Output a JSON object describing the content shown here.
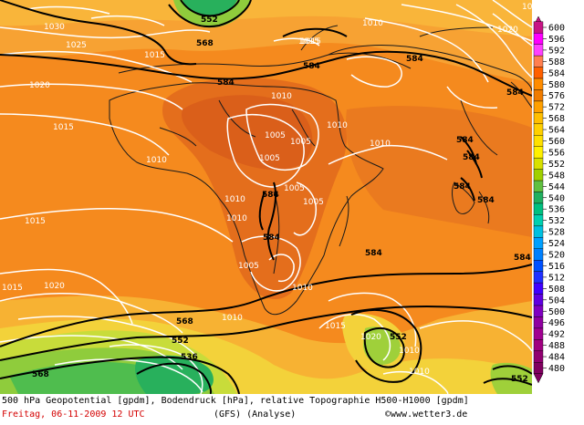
{
  "footer": {
    "title": "500 hPa Geopotential [gpdm], Bodendruck [hPa], relative Topographie H500-H1000 [gpdm]",
    "datetime": "Freitag, 06-11-2009  12 UTC",
    "model": "(GFS)  (Analyse)",
    "site": "©www.wetter3.de"
  },
  "legend": {
    "labels": [
      "600",
      "596",
      "592",
      "588",
      "584",
      "580",
      "576",
      "572",
      "568",
      "564",
      "560",
      "556",
      "552",
      "548",
      "544",
      "540",
      "536",
      "532",
      "528",
      "524",
      "520",
      "516",
      "512",
      "508",
      "504",
      "500",
      "496",
      "492",
      "488",
      "484",
      "480"
    ],
    "colors": [
      "#c71585",
      "#ff00ff",
      "#ff40ff",
      "#ff7f50",
      "#ff6000",
      "#ff8c00",
      "#f07c00",
      "#ffa000",
      "#ffbf00",
      "#ffd000",
      "#ffe000",
      "#fff000",
      "#d8e000",
      "#a0d000",
      "#60c040",
      "#20b060",
      "#00c080",
      "#00d0b0",
      "#00c0e0",
      "#00a0ff",
      "#0080ff",
      "#0050ff",
      "#2030ff",
      "#4000ff",
      "#6000e0",
      "#8000c0",
      "#9000a0",
      "#a00090",
      "#a00080",
      "#900070",
      "#800060"
    ]
  },
  "map": {
    "geopotential_labels": [
      "552",
      "568",
      "584",
      "584",
      "584",
      "584",
      "584",
      "584",
      "584",
      "584",
      "584",
      "584",
      "568",
      "552",
      "536",
      "584",
      "584",
      "568",
      "552",
      "552"
    ],
    "pressure_labels": [
      "1030",
      "1025",
      "1020",
      "1015",
      "1015",
      "1010",
      "1010",
      "1015",
      "1010",
      "1010",
      "1005",
      "1005",
      "1005",
      "1005",
      "1005",
      "1010",
      "1005",
      "1015",
      "1015",
      "1020",
      "1010",
      "1010",
      "1015",
      "1020",
      "1010",
      "1010",
      "1015",
      "1020",
      "1010",
      "1010",
      "1015"
    ]
  }
}
